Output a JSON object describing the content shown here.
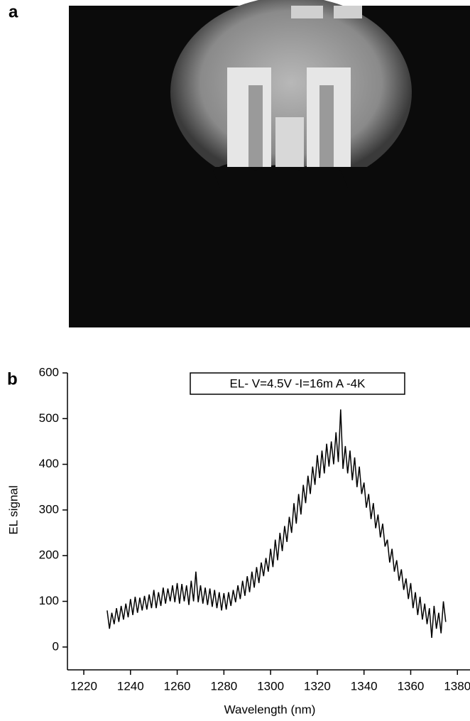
{
  "panel_a": {
    "label": "a"
  },
  "chart_data": {
    "type": "line",
    "panel_label": "b",
    "annotation": "EL- V=4.5V -I=16m A -4K",
    "x_label": "Wavelength (nm)",
    "y_label": "EL signal",
    "xlim": [
      1213,
      1386
    ],
    "ylim": [
      -50,
      600
    ],
    "xticks": [
      1220,
      1240,
      1260,
      1280,
      1300,
      1320,
      1340,
      1360,
      1380
    ],
    "yticks": [
      0,
      100,
      200,
      300,
      400,
      500,
      600
    ],
    "color": "#000000",
    "x": [
      1230,
      1231,
      1232,
      1233,
      1234,
      1235,
      1236,
      1237,
      1238,
      1239,
      1240,
      1241,
      1242,
      1243,
      1244,
      1245,
      1246,
      1247,
      1248,
      1249,
      1250,
      1251,
      1252,
      1253,
      1254,
      1255,
      1256,
      1257,
      1258,
      1259,
      1260,
      1261,
      1262,
      1263,
      1264,
      1265,
      1266,
      1267,
      1268,
      1269,
      1270,
      1271,
      1272,
      1273,
      1274,
      1275,
      1276,
      1277,
      1278,
      1279,
      1280,
      1281,
      1282,
      1283,
      1284,
      1285,
      1286,
      1287,
      1288,
      1289,
      1290,
      1291,
      1292,
      1293,
      1294,
      1295,
      1296,
      1297,
      1298,
      1299,
      1300,
      1301,
      1302,
      1303,
      1304,
      1305,
      1306,
      1307,
      1308,
      1309,
      1310,
      1311,
      1312,
      1313,
      1314,
      1315,
      1316,
      1317,
      1318,
      1319,
      1320,
      1321,
      1322,
      1323,
      1324,
      1325,
      1326,
      1327,
      1328,
      1329,
      1330,
      1331,
      1332,
      1333,
      1334,
      1335,
      1336,
      1337,
      1338,
      1339,
      1340,
      1341,
      1342,
      1343,
      1344,
      1345,
      1346,
      1347,
      1348,
      1349,
      1350,
      1351,
      1352,
      1353,
      1354,
      1355,
      1356,
      1357,
      1358,
      1359,
      1360,
      1361,
      1362,
      1363,
      1364,
      1365,
      1366,
      1367,
      1368,
      1369,
      1370,
      1371,
      1372,
      1373,
      1374,
      1375
    ],
    "values": [
      80,
      40,
      75,
      50,
      85,
      55,
      90,
      60,
      95,
      65,
      105,
      70,
      110,
      75,
      108,
      80,
      112,
      82,
      115,
      85,
      125,
      85,
      120,
      90,
      130,
      95,
      128,
      100,
      135,
      98,
      140,
      95,
      138,
      100,
      135,
      92,
      145,
      100,
      165,
      98,
      135,
      95,
      130,
      92,
      128,
      88,
      125,
      85,
      120,
      80,
      118,
      82,
      120,
      90,
      125,
      98,
      135,
      105,
      145,
      112,
      155,
      120,
      165,
      130,
      175,
      140,
      185,
      155,
      195,
      165,
      215,
      175,
      235,
      190,
      250,
      210,
      265,
      230,
      285,
      250,
      315,
      270,
      335,
      290,
      355,
      315,
      375,
      335,
      395,
      355,
      420,
      370,
      430,
      380,
      445,
      395,
      450,
      400,
      470,
      405,
      520,
      390,
      440,
      380,
      430,
      365,
      415,
      350,
      395,
      335,
      360,
      305,
      335,
      280,
      315,
      260,
      290,
      240,
      270,
      220,
      235,
      185,
      215,
      165,
      190,
      145,
      170,
      125,
      150,
      105,
      140,
      85,
      120,
      70,
      110,
      60,
      95,
      50,
      85,
      20,
      90,
      40,
      75,
      30,
      100,
      55
    ]
  }
}
